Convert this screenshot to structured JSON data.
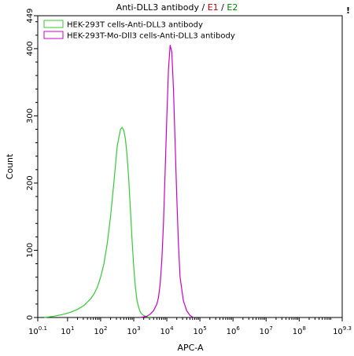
{
  "title": {
    "prefix": "Anti-DLL3 antibody",
    "sep": " / ",
    "e1": "E1",
    "e2": "E2",
    "e1_color": "#c00000",
    "e2_color": "#008000"
  },
  "corner_mark": "!",
  "chart_data": {
    "type": "line",
    "xlabel": "APC-A",
    "ylabel": "Count",
    "xscale": "log",
    "xlim": [
      0.1,
      9.3
    ],
    "ylim": [
      0,
      449
    ],
    "x_ticks": [
      {
        "base": "10",
        "exp": "0.1",
        "value": 0.1
      },
      {
        "base": "10",
        "exp": "1",
        "value": 1
      },
      {
        "base": "10",
        "exp": "2",
        "value": 2
      },
      {
        "base": "10",
        "exp": "3",
        "value": 3
      },
      {
        "base": "10",
        "exp": "4",
        "value": 4
      },
      {
        "base": "10",
        "exp": "5",
        "value": 5
      },
      {
        "base": "10",
        "exp": "6",
        "value": 6
      },
      {
        "base": "10",
        "exp": "7",
        "value": 7
      },
      {
        "base": "10",
        "exp": "8",
        "value": 8
      },
      {
        "base": "10",
        "exp": "9.3",
        "value": 9.3
      }
    ],
    "y_ticks": [
      "0",
      "100",
      "200",
      "300",
      "400",
      "449"
    ],
    "legend_position": "top-left",
    "series": [
      {
        "name": "HEK-293T cells-Anti-DLL3 antibody",
        "color": "#33cc33",
        "x": [
          0.3,
          0.6,
          0.9,
          1.1,
          1.3,
          1.5,
          1.7,
          1.8,
          1.9,
          2.0,
          2.1,
          2.2,
          2.3,
          2.4,
          2.5,
          2.6,
          2.65,
          2.7,
          2.75,
          2.8,
          2.85,
          2.9,
          2.95,
          3.0,
          3.05,
          3.1,
          3.15,
          3.2,
          3.25,
          3.3,
          3.4,
          3.5
        ],
        "y": [
          0,
          2,
          5,
          8,
          12,
          18,
          28,
          35,
          45,
          60,
          80,
          110,
          150,
          200,
          255,
          280,
          283,
          278,
          265,
          240,
          205,
          160,
          115,
          75,
          45,
          25,
          15,
          8,
          5,
          3,
          1,
          0
        ]
      },
      {
        "name": "HEK-293T-Mo-Dll3 cells-Anti-DLL3 antibody",
        "color": "#cc00cc",
        "x": [
          3.2,
          3.4,
          3.5,
          3.6,
          3.7,
          3.75,
          3.8,
          3.85,
          3.9,
          3.95,
          4.0,
          4.05,
          4.1,
          4.15,
          4.2,
          4.25,
          4.3,
          4.35,
          4.4,
          4.5,
          4.6,
          4.7,
          4.8
        ],
        "y": [
          0,
          2,
          5,
          10,
          20,
          30,
          50,
          85,
          140,
          220,
          300,
          370,
          405,
          395,
          340,
          260,
          180,
          110,
          60,
          25,
          10,
          3,
          0
        ]
      }
    ]
  }
}
